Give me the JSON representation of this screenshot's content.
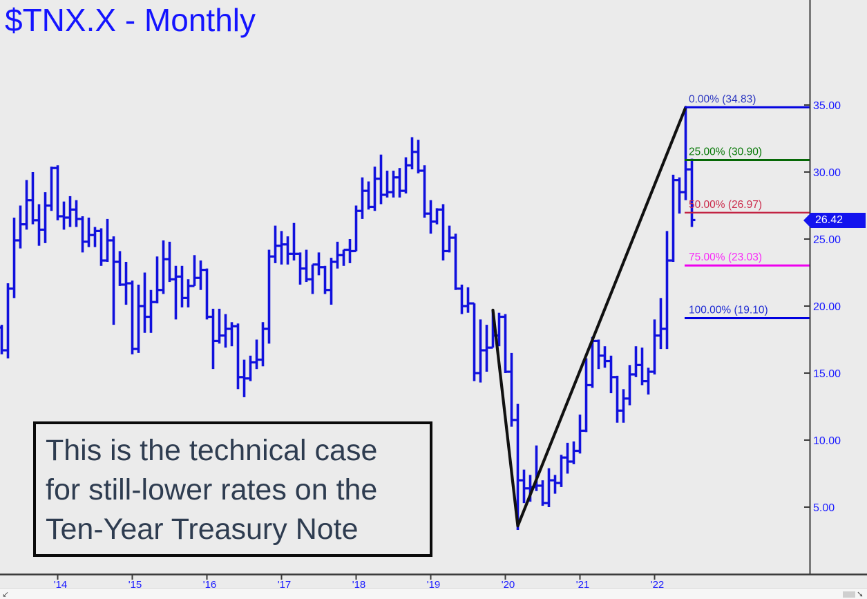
{
  "title": "$TNX.X - Monthly",
  "annotation": {
    "lines": [
      "This is the technical case",
      "for still-lower rates on the",
      "Ten-Year Treasury Note"
    ]
  },
  "price_tag": {
    "value": "26.42"
  },
  "scrollbar": {
    "left_arrow": "↙",
    "right_arrow": "➘"
  },
  "colors": {
    "background": "#ebebeb",
    "title": "#1414ff",
    "bars": "#1010dd",
    "axis": "#3a3a3a",
    "tick_labels": "#1a1aff",
    "trendline": "#111111",
    "annotation_text": "#2e3c50",
    "price_tag_bg": "#1313ee"
  },
  "chart_data": {
    "type": "bar",
    "subtype": "ohlc-monthly",
    "symbol": "$TNX.X",
    "timeframe": "Monthly",
    "title": "$TNX.X - Monthly",
    "ylim": [
      0,
      42.8
    ],
    "grid": false,
    "last_price": 26.42,
    "y_axis": {
      "ticks": [
        {
          "label": "35.00",
          "value": 35
        },
        {
          "label": "30.00",
          "value": 30
        },
        {
          "label": "25.00",
          "value": 25
        },
        {
          "label": "20.00",
          "value": 20
        },
        {
          "label": "15.00",
          "value": 15
        },
        {
          "label": "10.00",
          "value": 10
        },
        {
          "label": "5.00",
          "value": 5
        }
      ]
    },
    "x_axis": {
      "ticks": [
        {
          "label": "'14",
          "index": 9
        },
        {
          "label": "'15",
          "index": 21
        },
        {
          "label": "'16",
          "index": 33
        },
        {
          "label": "'17",
          "index": 45
        },
        {
          "label": "'18",
          "index": 57
        },
        {
          "label": "'19",
          "index": 69
        },
        {
          "label": "'20",
          "index": 81
        },
        {
          "label": "'21",
          "index": 93
        },
        {
          "label": "'22",
          "index": 105
        }
      ]
    },
    "bars_start": "2013-04",
    "bars_interval": "month",
    "ohlc": [
      [
        18.4,
        18.6,
        16.4,
        16.7
      ],
      [
        16.7,
        21.7,
        16.1,
        21.3
      ],
      [
        21.3,
        26.6,
        20.6,
        24.9
      ],
      [
        24.9,
        27.5,
        24.3,
        26.1
      ],
      [
        26.1,
        29.4,
        25.7,
        27.9
      ],
      [
        27.9,
        30.0,
        26.1,
        26.4
      ],
      [
        26.4,
        27.6,
        24.5,
        25.7
      ],
      [
        25.7,
        28.5,
        24.7,
        27.5
      ],
      [
        27.5,
        30.4,
        27.1,
        30.3
      ],
      [
        30.3,
        30.5,
        26.4,
        26.7
      ],
      [
        26.7,
        27.8,
        25.7,
        26.6
      ],
      [
        26.6,
        28.2,
        25.9,
        27.2
      ],
      [
        27.2,
        27.9,
        25.9,
        26.5
      ],
      [
        26.5,
        26.7,
        24.0,
        24.8
      ],
      [
        24.8,
        26.6,
        24.4,
        25.3
      ],
      [
        25.3,
        25.9,
        24.4,
        25.6
      ],
      [
        25.6,
        25.8,
        23.0,
        23.4
      ],
      [
        23.4,
        26.5,
        23.3,
        24.9
      ],
      [
        24.9,
        25.2,
        18.6,
        23.3
      ],
      [
        23.3,
        24.1,
        21.5,
        21.6
      ],
      [
        21.6,
        23.3,
        20.1,
        21.7
      ],
      [
        21.7,
        21.9,
        16.4,
        16.8
      ],
      [
        16.8,
        21.6,
        16.5,
        20.0
      ],
      [
        20.0,
        22.5,
        18.0,
        19.2
      ],
      [
        19.2,
        21.2,
        18.0,
        20.3
      ],
      [
        20.3,
        23.7,
        20.2,
        21.2
      ],
      [
        21.2,
        24.9,
        20.9,
        23.5
      ],
      [
        23.5,
        24.8,
        21.8,
        22.0
      ],
      [
        22.0,
        23.0,
        19.0,
        22.2
      ],
      [
        22.2,
        23.0,
        19.9,
        20.6
      ],
      [
        20.6,
        22.0,
        19.9,
        21.5
      ],
      [
        21.5,
        23.8,
        21.5,
        22.1
      ],
      [
        22.1,
        23.4,
        21.2,
        22.7
      ],
      [
        22.7,
        22.8,
        19.0,
        19.2
      ],
      [
        19.2,
        19.8,
        15.3,
        17.4
      ],
      [
        17.4,
        19.8,
        17.2,
        17.8
      ],
      [
        17.8,
        19.4,
        16.9,
        18.3
      ],
      [
        18.3,
        18.8,
        17.0,
        18.5
      ],
      [
        18.5,
        18.7,
        13.8,
        14.7
      ],
      [
        14.7,
        16.0,
        13.2,
        14.6
      ],
      [
        14.6,
        16.3,
        14.4,
        15.8
      ],
      [
        15.8,
        17.5,
        15.3,
        16.0
      ],
      [
        16.0,
        18.8,
        15.5,
        18.3
      ],
      [
        18.3,
        24.2,
        17.2,
        23.7
      ],
      [
        23.7,
        26.0,
        23.2,
        24.5
      ],
      [
        24.5,
        25.6,
        23.1,
        24.6
      ],
      [
        24.6,
        25.2,
        23.1,
        23.9
      ],
      [
        23.9,
        26.2,
        23.4,
        23.9
      ],
      [
        23.9,
        24.0,
        21.6,
        22.8
      ],
      [
        22.8,
        24.2,
        21.8,
        22.0
      ],
      [
        22.0,
        23.1,
        20.9,
        23.1
      ],
      [
        23.1,
        24.0,
        22.3,
        22.9
      ],
      [
        22.9,
        23.0,
        20.9,
        21.2
      ],
      [
        21.2,
        23.6,
        20.1,
        23.3
      ],
      [
        23.3,
        24.8,
        22.8,
        23.8
      ],
      [
        23.8,
        24.2,
        23.0,
        24.2
      ],
      [
        24.2,
        25.0,
        23.2,
        24.1
      ],
      [
        24.1,
        27.5,
        24.1,
        27.1
      ],
      [
        27.1,
        29.6,
        26.5,
        28.6
      ],
      [
        28.6,
        29.3,
        27.2,
        27.4
      ],
      [
        27.4,
        30.4,
        27.1,
        29.5
      ],
      [
        29.5,
        31.3,
        27.6,
        28.3
      ],
      [
        28.3,
        30.1,
        28.1,
        28.5
      ],
      [
        28.5,
        30.1,
        28.1,
        29.6
      ],
      [
        29.6,
        30.3,
        28.1,
        28.6
      ],
      [
        28.6,
        31.1,
        28.4,
        30.5
      ],
      [
        30.5,
        32.6,
        30.2,
        31.5
      ],
      [
        31.5,
        32.4,
        29.9,
        30.1
      ],
      [
        30.1,
        30.5,
        26.6,
        26.9
      ],
      [
        26.9,
        27.9,
        25.4,
        26.3
      ],
      [
        26.3,
        27.3,
        26.1,
        27.2
      ],
      [
        27.2,
        27.6,
        23.4,
        24.1
      ],
      [
        24.1,
        26.0,
        24.0,
        25.1
      ],
      [
        25.1,
        25.4,
        21.2,
        21.3
      ],
      [
        21.3,
        21.6,
        19.4,
        20.0
      ],
      [
        20.0,
        21.4,
        19.5,
        20.2
      ],
      [
        20.2,
        20.2,
        14.4,
        15.0
      ],
      [
        15.0,
        19.0,
        14.3,
        16.7
      ],
      [
        16.7,
        18.6,
        15.1,
        16.9
      ],
      [
        16.9,
        19.7,
        16.9,
        17.8
      ],
      [
        17.8,
        19.5,
        17.0,
        19.2
      ],
      [
        19.2,
        19.4,
        15.0,
        15.1
      ],
      [
        15.1,
        16.5,
        11.0,
        11.5
      ],
      [
        11.5,
        12.7,
        3.3,
        7.0
      ],
      [
        7.0,
        7.8,
        5.3,
        6.4
      ],
      [
        6.4,
        7.4,
        5.4,
        6.5
      ],
      [
        6.5,
        9.6,
        6.2,
        6.6
      ],
      [
        6.6,
        7.0,
        5.1,
        5.3
      ],
      [
        5.3,
        7.9,
        5.0,
        7.0
      ],
      [
        7.0,
        7.4,
        6.0,
        6.8
      ],
      [
        6.8,
        8.9,
        6.5,
        8.7
      ],
      [
        8.7,
        9.8,
        7.5,
        8.4
      ],
      [
        8.4,
        9.9,
        8.2,
        9.2
      ],
      [
        9.2,
        11.9,
        9.0,
        10.7
      ],
      [
        10.7,
        16.1,
        10.6,
        14.1
      ],
      [
        14.1,
        17.7,
        13.9,
        17.4
      ],
      [
        17.4,
        17.5,
        15.3,
        16.3
      ],
      [
        16.3,
        17.0,
        15.4,
        15.9
      ],
      [
        15.9,
        16.3,
        13.5,
        14.7
      ],
      [
        14.7,
        14.8,
        11.3,
        12.2
      ],
      [
        12.2,
        13.8,
        11.3,
        13.1
      ],
      [
        13.1,
        15.6,
        12.6,
        14.9
      ],
      [
        14.9,
        17.0,
        14.7,
        15.6
      ],
      [
        15.6,
        16.9,
        14.1,
        14.4
      ],
      [
        14.4,
        15.4,
        13.4,
        15.1
      ],
      [
        15.1,
        19.0,
        14.9,
        17.8
      ],
      [
        17.8,
        20.6,
        16.8,
        18.3
      ],
      [
        18.3,
        25.6,
        16.8,
        23.4
      ],
      [
        23.4,
        29.8,
        23.3,
        29.4
      ],
      [
        29.4,
        29.6,
        26.9,
        28.5
      ],
      [
        28.5,
        34.83,
        27.9,
        30.2
      ],
      [
        30.2,
        31.0,
        25.9,
        26.42
      ]
    ],
    "fib_levels": [
      {
        "label": "0.00% (34.83)",
        "value": 34.83,
        "line_color": "#0000e0",
        "label_color": "#2a35c0"
      },
      {
        "label": "25.00% (30.90)",
        "value": 30.9,
        "line_color": "#066806",
        "label_color": "#067806"
      },
      {
        "label": "50.00% (26.97)",
        "value": 26.97,
        "line_color": "#c22343",
        "label_color": "#cb2a4b"
      },
      {
        "label": "75.00% (23.03)",
        "value": 23.03,
        "line_color": "#ee00ee",
        "label_color": "#f82af8"
      },
      {
        "label": "100.00% (19.10)",
        "value": 19.1,
        "line_color": "#0000e0",
        "label_color": "#1f2cd4"
      }
    ],
    "trendlines": [
      {
        "from_index": 79,
        "from_value": 19.7,
        "to_index": 83,
        "to_value": 3.6
      },
      {
        "from_index": 83,
        "from_value": 3.6,
        "to_index": 110,
        "to_value": 34.83
      }
    ]
  }
}
